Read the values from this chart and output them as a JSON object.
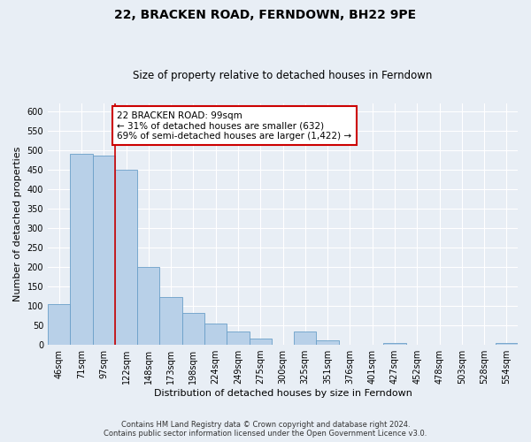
{
  "title": "22, BRACKEN ROAD, FERNDOWN, BH22 9PE",
  "subtitle": "Size of property relative to detached houses in Ferndown",
  "xlabel": "Distribution of detached houses by size in Ferndown",
  "ylabel": "Number of detached properties",
  "bar_labels": [
    "46sqm",
    "71sqm",
    "97sqm",
    "122sqm",
    "148sqm",
    "173sqm",
    "198sqm",
    "224sqm",
    "249sqm",
    "275sqm",
    "300sqm",
    "325sqm",
    "351sqm",
    "376sqm",
    "401sqm",
    "427sqm",
    "452sqm",
    "478sqm",
    "503sqm",
    "528sqm",
    "554sqm"
  ],
  "bar_values": [
    105,
    490,
    485,
    450,
    200,
    122,
    82,
    55,
    35,
    16,
    0,
    35,
    12,
    0,
    0,
    5,
    0,
    0,
    0,
    0,
    5
  ],
  "bar_color": "#b8d0e8",
  "bar_edge_color": "#6a9fc8",
  "annotation_line1": "22 BRACKEN ROAD: 99sqm",
  "annotation_line2": "← 31% of detached houses are smaller (632)",
  "annotation_line3": "69% of semi-detached houses are larger (1,422) →",
  "annotation_box_facecolor": "#ffffff",
  "annotation_box_edge": "#cc0000",
  "vline_color": "#cc0000",
  "ylim": [
    0,
    620
  ],
  "yticks": [
    0,
    50,
    100,
    150,
    200,
    250,
    300,
    350,
    400,
    450,
    500,
    550,
    600
  ],
  "footer1": "Contains HM Land Registry data © Crown copyright and database right 2024.",
  "footer2": "Contains public sector information licensed under the Open Government Licence v3.0.",
  "background_color": "#e8eef5",
  "plot_bg_color": "#e8eef5",
  "grid_color": "#ffffff",
  "title_fontsize": 10,
  "subtitle_fontsize": 8.5,
  "axis_label_fontsize": 8,
  "tick_fontsize": 7,
  "annotation_fontsize": 7.5,
  "footer_fontsize": 6
}
